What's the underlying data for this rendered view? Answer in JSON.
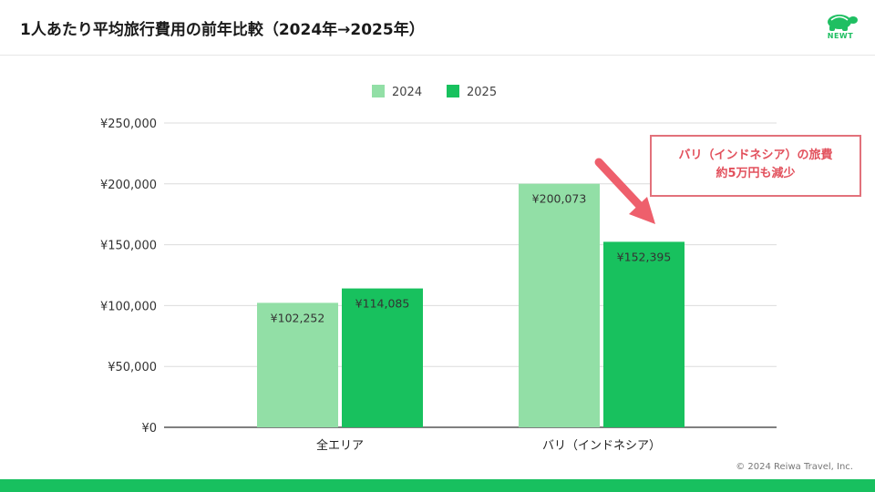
{
  "header": {
    "title": "1人あたり平均旅行費用の前年比較（2024年→2025年）",
    "logo_text": "NEWT"
  },
  "callout": {
    "line1": "バリ（インドネシア）の旅費",
    "line2": "約5万円も減少"
  },
  "footer": {
    "copyright": "© 2024 Reiwa Travel, Inc."
  },
  "colors": {
    "series_2024": "#92dfa6",
    "series_2025": "#18c15e",
    "accent": "#1fbf62",
    "callout": "#e2717b",
    "arrow": "#ee5f6c"
  },
  "icons": {
    "logo": "turtle-icon",
    "arrow": "arrow-down-right-icon"
  },
  "chart_data": {
    "type": "bar",
    "categories": [
      "全エリア",
      "バリ（インドネシア）"
    ],
    "series": [
      {
        "name": "2024",
        "values": [
          102252,
          200073
        ],
        "labels": [
          "¥102,252",
          "¥200,073"
        ]
      },
      {
        "name": "2025",
        "values": [
          114085,
          152395
        ],
        "labels": [
          "¥114,085",
          "¥152,395"
        ]
      }
    ],
    "yticks": [
      "¥0",
      "¥50,000",
      "¥100,000",
      "¥150,000",
      "¥200,000",
      "¥250,000"
    ],
    "ylim": [
      0,
      250000
    ],
    "grid": true,
    "legend": "top-center"
  }
}
